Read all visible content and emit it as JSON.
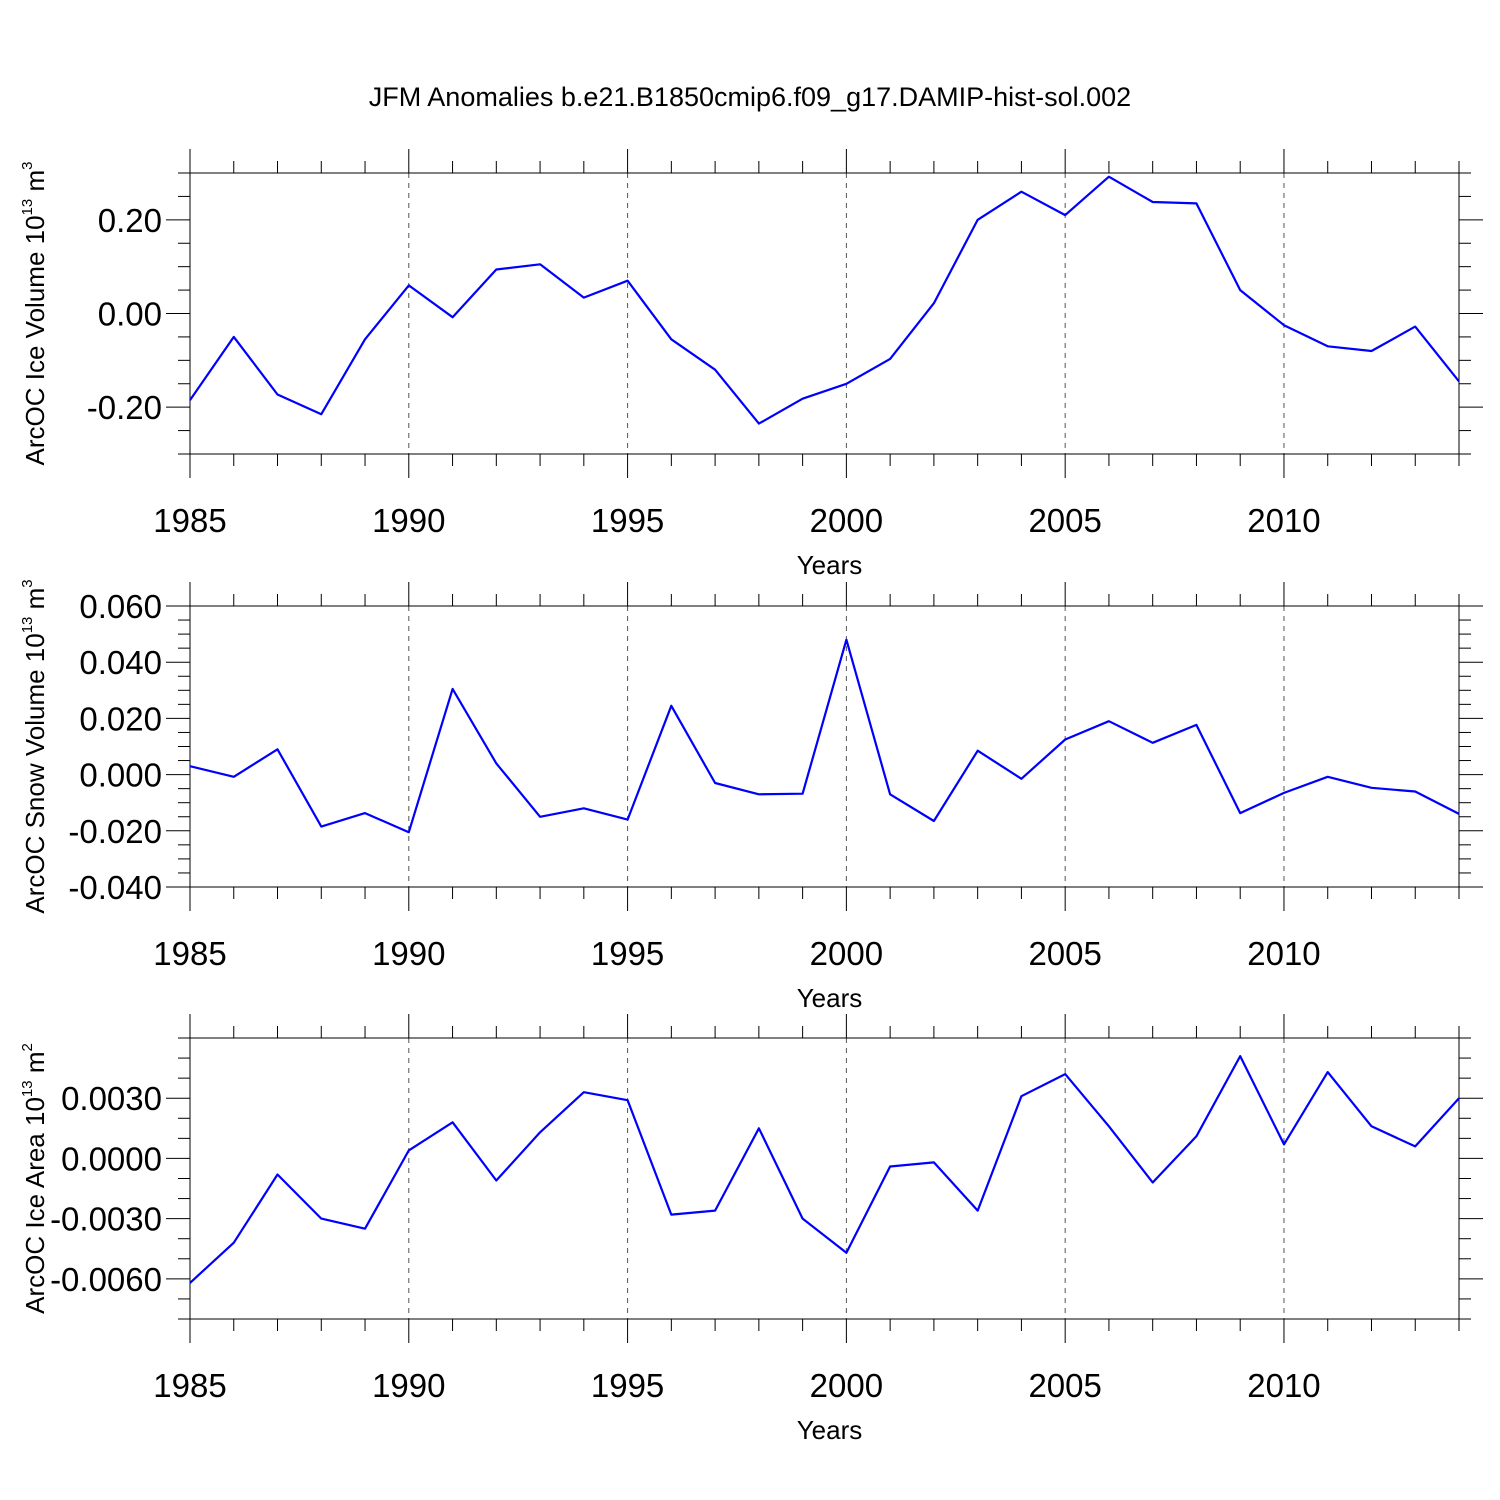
{
  "chart_data": {
    "type": "line",
    "title": "JFM Anomalies b.e21.B1850cmip6.f09_g17.DAMIP-hist-sol.002",
    "series_color": "#0000ff",
    "panels": [
      {
        "id": "ice-volume",
        "ylabel_prefix": "ArcOC Ice Volume 10",
        "ylabel_exp": "13",
        "ylabel_unit": " m",
        "ylabel_unit_exp": "3",
        "xlabel": "Years",
        "xlim": [
          1985,
          2014
        ],
        "ylim": [
          -0.3,
          0.3
        ],
        "xticks": [
          1985,
          1990,
          1995,
          2000,
          2005,
          2010
        ],
        "xtick_labels": [
          "1985",
          "1990",
          "1995",
          "2000",
          "2005",
          "2010"
        ],
        "yticks": [
          -0.2,
          0.0,
          0.2
        ],
        "ytick_labels": [
          "-0.20",
          "0.00",
          "0.20"
        ],
        "yminor_step": 0.05,
        "x": [
          1985,
          1986,
          1987,
          1988,
          1989,
          1990,
          1991,
          1992,
          1993,
          1994,
          1995,
          1996,
          1997,
          1998,
          1999,
          2000,
          2001,
          2002,
          2003,
          2004,
          2005,
          2006,
          2007,
          2008,
          2009,
          2010,
          2011,
          2012,
          2013,
          2014
        ],
        "y": [
          -0.185,
          -0.05,
          -0.173,
          -0.215,
          -0.055,
          0.06,
          -0.008,
          0.094,
          0.105,
          0.034,
          0.07,
          -0.055,
          -0.12,
          -0.235,
          -0.182,
          -0.15,
          -0.097,
          0.022,
          0.2,
          0.26,
          0.21,
          0.292,
          0.238,
          0.235,
          0.05,
          -0.025,
          -0.07,
          -0.08,
          -0.028,
          -0.145
        ]
      },
      {
        "id": "snow-volume",
        "ylabel_prefix": "ArcOC Snow Volume 10",
        "ylabel_exp": "13",
        "ylabel_unit": " m",
        "ylabel_unit_exp": "3",
        "xlabel": "Years",
        "xlim": [
          1985,
          2014
        ],
        "ylim": [
          -0.04,
          0.06
        ],
        "xticks": [
          1985,
          1990,
          1995,
          2000,
          2005,
          2010
        ],
        "xtick_labels": [
          "1985",
          "1990",
          "1995",
          "2000",
          "2005",
          "2010"
        ],
        "yticks": [
          -0.04,
          -0.02,
          0.0,
          0.02,
          0.04,
          0.06
        ],
        "ytick_labels": [
          "-0.040",
          "-0.020",
          "0.000",
          "0.020",
          "0.040",
          "0.060"
        ],
        "yminor_step": 0.005,
        "x": [
          1985,
          1986,
          1987,
          1988,
          1989,
          1990,
          1991,
          1992,
          1993,
          1994,
          1995,
          1996,
          1997,
          1998,
          1999,
          2000,
          2001,
          2002,
          2003,
          2004,
          2005,
          2006,
          2007,
          2008,
          2009,
          2010,
          2011,
          2012,
          2013,
          2014
        ],
        "y": [
          0.003,
          -0.0008,
          0.009,
          -0.0185,
          -0.0137,
          -0.0205,
          0.0305,
          0.004,
          -0.015,
          -0.012,
          -0.016,
          0.0245,
          -0.003,
          -0.007,
          -0.0068,
          0.048,
          -0.007,
          -0.0165,
          0.0085,
          -0.0015,
          0.0125,
          0.019,
          0.0113,
          0.0177,
          -0.0137,
          -0.0065,
          -0.0008,
          -0.0047,
          -0.006,
          -0.014
        ]
      },
      {
        "id": "ice-area",
        "ylabel_prefix": "ArcOC Ice Area 10",
        "ylabel_exp": "13",
        "ylabel_unit": " m",
        "ylabel_unit_exp": "2",
        "xlabel": "Years",
        "xlim": [
          1985,
          2014
        ],
        "ylim": [
          -0.008,
          0.006
        ],
        "xticks": [
          1985,
          1990,
          1995,
          2000,
          2005,
          2010
        ],
        "xtick_labels": [
          "1985",
          "1990",
          "1995",
          "2000",
          "2005",
          "2010"
        ],
        "yticks": [
          -0.006,
          -0.003,
          0.0,
          0.003
        ],
        "ytick_labels": [
          "-0.0060",
          "-0.0030",
          "0.0000",
          "0.0030"
        ],
        "yminor_step": 0.001,
        "x": [
          1985,
          1986,
          1987,
          1988,
          1989,
          1990,
          1991,
          1992,
          1993,
          1994,
          1995,
          1996,
          1997,
          1998,
          1999,
          2000,
          2001,
          2002,
          2003,
          2004,
          2005,
          2006,
          2007,
          2008,
          2009,
          2010,
          2011,
          2012,
          2013,
          2014
        ],
        "y": [
          -0.0062,
          -0.0042,
          -0.0008,
          -0.003,
          -0.0035,
          0.0004,
          0.0018,
          -0.0011,
          0.0013,
          0.0033,
          0.0029,
          -0.0028,
          -0.0026,
          0.0015,
          -0.003,
          -0.0047,
          -0.0004,
          -0.0002,
          -0.0026,
          0.0031,
          0.0042,
          0.0016,
          -0.0012,
          0.0011,
          0.0051,
          0.0007,
          0.0043,
          0.0016,
          0.0006,
          0.003
        ]
      }
    ]
  }
}
